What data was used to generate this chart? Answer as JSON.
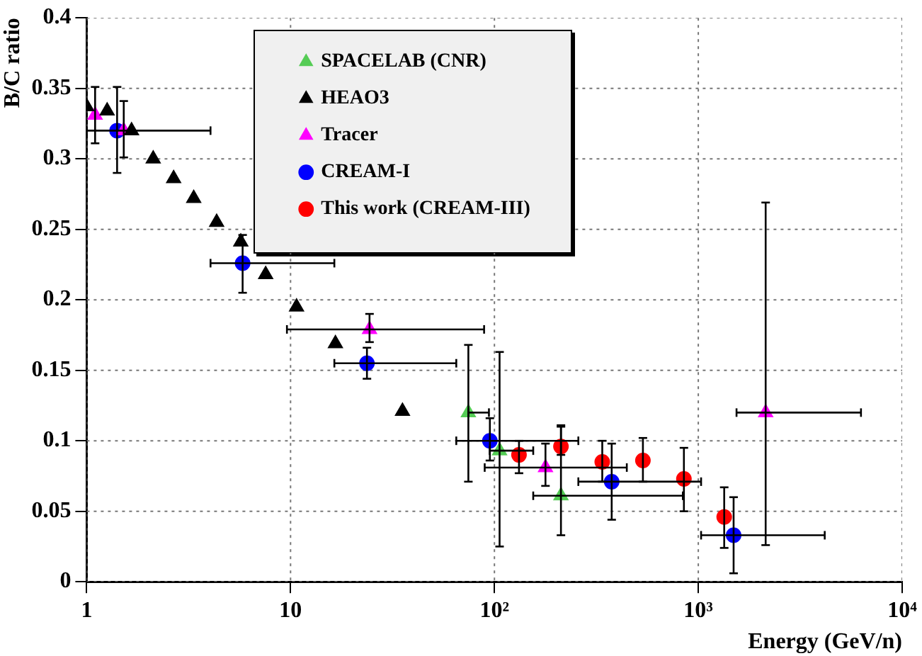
{
  "chart_data": {
    "type": "scatter",
    "xlabel": "Energy (GeV/n)",
    "ylabel": "B/C ratio",
    "log": "x",
    "xlim": [
      1,
      10000
    ],
    "xticks": [
      1,
      10,
      {
        "value": 100,
        "label": "10²"
      },
      {
        "value": 1000,
        "label": "10³"
      },
      {
        "value": 10000,
        "label": "10⁴"
      }
    ],
    "ylim": [
      0,
      0.4
    ],
    "yticks": [
      0,
      0.05,
      0.1,
      0.15,
      0.2,
      0.25,
      0.3,
      0.35,
      0.4
    ],
    "grid": true,
    "legend": "top",
    "series": [
      {
        "name": "SPACELAB (CNR)",
        "color": "#55cc55",
        "marker": "triangle",
        "x": [
          74.5,
          106,
          212
        ],
        "values": [
          0.12,
          0.093,
          0.061
        ],
        "errors": [
          [
            0.071,
            0.168
          ],
          [
            0.025,
            0.163
          ],
          [
            0.033,
            0.111
          ]
        ],
        "xerrors": [
          [
            74.5,
            94
          ],
          [
            94.8,
            155
          ],
          [
            155,
            840
          ]
        ]
      },
      {
        "name": "HEAO3",
        "color": "#000000",
        "marker": "triangle",
        "x": [
          1.0,
          1.26,
          1.66,
          2.12,
          2.67,
          3.35,
          4.34,
          5.7,
          7.55,
          10.7,
          16.6,
          35.4
        ],
        "values": [
          0.337,
          0.334,
          0.32,
          0.3,
          0.286,
          0.272,
          0.255,
          0.241,
          0.218,
          0.195,
          0.169,
          0.121
        ]
      },
      {
        "name": "Tracer",
        "color": "#ff00ff",
        "marker": "triangle",
        "x": [
          1.1,
          1.52,
          24.4,
          178,
          2140
        ],
        "values": [
          0.331,
          0.32,
          0.179,
          0.081,
          0.12
        ],
        "errors": [
          [
            0.311,
            0.351
          ],
          [
            0.301,
            0.341
          ],
          [
            0.17,
            0.19
          ],
          [
            0.068,
            0.098
          ],
          [
            0.026,
            0.269
          ]
        ],
        "xerrors": [
          null,
          null,
          [
            9.6,
            89
          ],
          [
            89.6,
            446
          ],
          [
            1540,
            6280
          ]
        ]
      },
      {
        "name": "CREAM-I",
        "color": "#0000ff",
        "marker": "circle",
        "x": [
          1.41,
          5.82,
          23.7,
          95,
          376,
          1490
        ],
        "values": [
          0.32,
          0.226,
          0.155,
          0.1,
          0.071,
          0.033
        ],
        "errors": [
          [
            0.29,
            0.351
          ],
          [
            0.205,
            0.246
          ],
          [
            0.144,
            0.166
          ],
          [
            0.086,
            0.116
          ],
          [
            0.044,
            0.098
          ],
          [
            0.006,
            0.06
          ]
        ],
        "xerrors": [
          [
            1.0,
            4.05
          ],
          [
            4.05,
            16.4
          ],
          [
            16.4,
            65
          ],
          [
            65,
            258
          ],
          [
            258,
            1032
          ],
          [
            1032,
            4170
          ]
        ]
      },
      {
        "name": "This work (CREAM-III)",
        "color": "#ff0000",
        "marker": "circle",
        "x": [
          132,
          212,
          338,
          535,
          850,
          1340
        ],
        "values": [
          0.09,
          0.096,
          0.085,
          0.086,
          0.073,
          0.046
        ],
        "errors": [
          [
            0.077,
            0.1
          ],
          [
            0.09,
            0.11
          ],
          [
            0.071,
            0.1
          ],
          [
            0.071,
            0.102
          ],
          [
            0.05,
            0.095
          ],
          [
            0.024,
            0.067
          ]
        ]
      }
    ]
  }
}
